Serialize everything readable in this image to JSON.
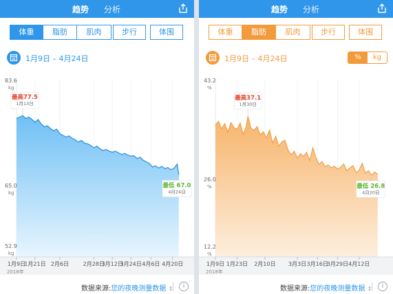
{
  "tabs": {
    "trend": "趋势",
    "analysis": "分析"
  },
  "segments": {
    "weight": "体重",
    "fat": "脂肪",
    "muscle": "肌肉",
    "steps": "步行",
    "girth": "体围"
  },
  "date_range": "1月9日 – 4月24日",
  "unit_toggle": {
    "percent": "%",
    "kg": "kg"
  },
  "footer": {
    "label": "数据来源:",
    "value": "您的夜晚测量数据"
  },
  "icons": {
    "share": "share-icon",
    "calendar": "calendar-icon",
    "info": "info-icon"
  },
  "colors": {
    "blue": "#2f96ea",
    "orange": "#f39a3c",
    "max_text": "#e2442c",
    "min_text": "#5ab52f"
  },
  "chart_data": [
    {
      "type": "area",
      "year_label": "2018年",
      "y_ticks": [
        {
          "value": 83.6,
          "label": "83.6",
          "unit": "kg"
        },
        {
          "value": 65.0,
          "label": "65.0",
          "unit": "kg"
        },
        {
          "value": 52.9,
          "label": "52.9",
          "unit": "kg"
        }
      ],
      "ylim": [
        52.9,
        83.6
      ],
      "x_ticks": [
        "1月9日",
        "1月21日",
        "2月6日",
        "2月28日",
        "3月12日",
        "3月24日",
        "4月6日",
        "4月20日"
      ],
      "x_tick_days": [
        0,
        12,
        28,
        50,
        62,
        74,
        87,
        101
      ],
      "x_domain": [
        0,
        106
      ],
      "max_callout": {
        "label": "最高",
        "value": "77.5",
        "date": "1月13日",
        "day": 4
      },
      "min_callout": {
        "label": "最低",
        "value": "67.0",
        "date": "4月24日",
        "day": 105
      },
      "x": [
        0,
        2,
        4,
        6,
        8,
        10,
        12,
        14,
        16,
        18,
        20,
        22,
        24,
        26,
        28,
        30,
        32,
        34,
        36,
        38,
        40,
        42,
        44,
        46,
        48,
        50,
        52,
        54,
        56,
        58,
        60,
        62,
        64,
        66,
        68,
        70,
        72,
        74,
        76,
        78,
        80,
        82,
        84,
        86,
        88,
        90,
        92,
        94,
        96,
        98,
        100,
        102,
        104,
        105
      ],
      "values": [
        77.0,
        77.2,
        77.5,
        77.0,
        77.2,
        76.8,
        76.3,
        76.8,
        76.0,
        75.5,
        75.7,
        75.2,
        74.8,
        75.1,
        74.3,
        74.0,
        73.7,
        73.9,
        73.5,
        73.2,
        72.8,
        73.1,
        72.6,
        72.5,
        72.2,
        71.8,
        72.1,
        71.6,
        71.3,
        71.5,
        71.2,
        71.0,
        71.2,
        70.9,
        70.6,
        70.8,
        70.5,
        70.3,
        70.4,
        69.9,
        70.1,
        69.6,
        69.3,
        69.0,
        68.4,
        68.6,
        68.2,
        68.5,
        68.1,
        68.3,
        67.9,
        68.2,
        68.9,
        67.0
      ]
    },
    {
      "type": "area",
      "year_label": "2018年",
      "y_ticks": [
        {
          "value": 43.2,
          "label": "43.2",
          "unit": "%"
        },
        {
          "value": 26.0,
          "label": "26.0",
          "unit": "%"
        },
        {
          "value": 12.2,
          "label": "12.2",
          "unit": "%"
        }
      ],
      "ylim": [
        12.2,
        43.2
      ],
      "x_ticks": [
        "1月9日",
        "1月23日",
        "2月10日",
        "3月3日",
        "3月16日",
        "3月29日",
        "4月12日"
      ],
      "x_tick_days": [
        0,
        14,
        32,
        53,
        66,
        79,
        93
      ],
      "x_domain": [
        0,
        106
      ],
      "max_callout": {
        "label": "最高",
        "value": "37.1",
        "date": "1月30日",
        "day": 21
      },
      "min_callout": {
        "label": "最低",
        "value": "26.8",
        "date": "4月20日",
        "day": 101
      },
      "x": [
        0,
        2,
        4,
        6,
        8,
        10,
        12,
        14,
        16,
        18,
        20,
        21,
        23,
        25,
        27,
        29,
        31,
        33,
        35,
        37,
        39,
        41,
        43,
        45,
        47,
        49,
        51,
        53,
        55,
        57,
        59,
        61,
        63,
        65,
        67,
        69,
        71,
        73,
        75,
        77,
        79,
        81,
        83,
        85,
        87,
        89,
        91,
        93,
        95,
        97,
        99,
        101,
        103,
        105
      ],
      "values": [
        35.6,
        36.2,
        34.9,
        35.8,
        34.3,
        36.0,
        35.1,
        34.8,
        35.9,
        33.9,
        35.4,
        37.1,
        35.0,
        34.6,
        35.3,
        33.8,
        34.4,
        33.3,
        34.7,
        32.4,
        33.6,
        31.9,
        32.6,
        32.9,
        31.2,
        30.4,
        31.0,
        29.8,
        30.6,
        30.1,
        30.8,
        29.4,
        31.6,
        29.9,
        28.7,
        29.2,
        28.3,
        28.6,
        28.1,
        28.4,
        27.9,
        28.2,
        28.8,
        27.6,
        28.1,
        28.5,
        27.3,
        27.7,
        28.9,
        27.2,
        27.6,
        26.8,
        27.4,
        27.0
      ]
    }
  ]
}
